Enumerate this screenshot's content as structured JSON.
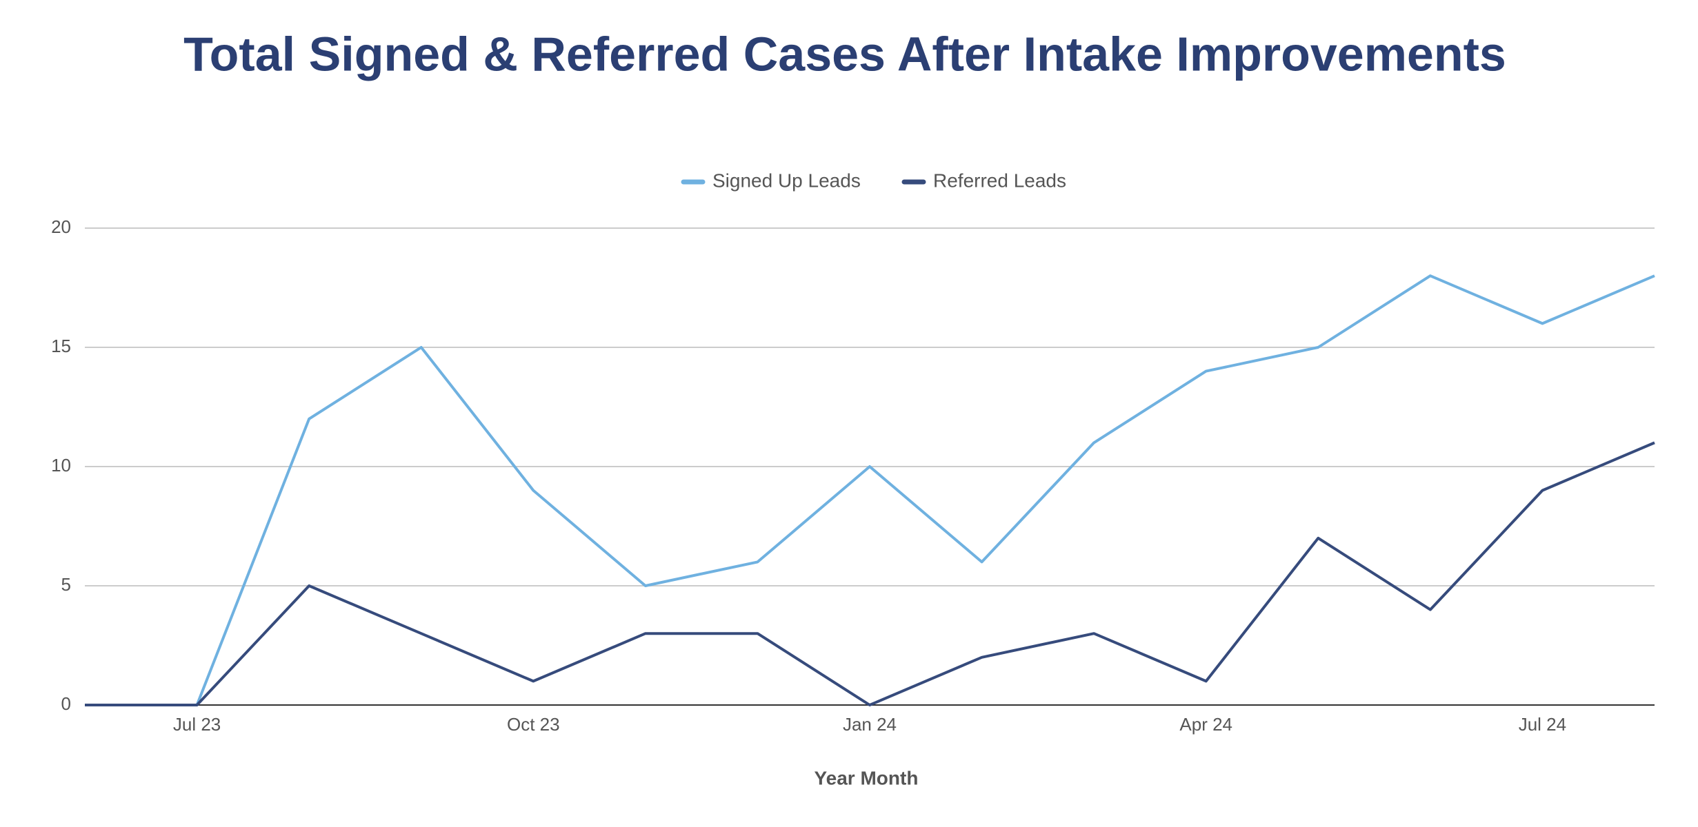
{
  "chart_data": {
    "type": "line",
    "title": "Total Signed & Referred Cases After Intake Improvements",
    "xlabel": "Year Month",
    "categories": [
      null,
      "Jul 23",
      null,
      null,
      "Oct 23",
      null,
      null,
      "Jan 24",
      null,
      null,
      "Apr 24",
      null,
      null,
      "Jul 24",
      null
    ],
    "series": [
      {
        "name": "Signed Up Leads",
        "color": "#6fb1e0",
        "values": [
          0,
          0,
          12,
          15,
          9,
          5,
          6,
          10,
          6,
          11,
          14,
          15,
          18,
          16,
          18
        ]
      },
      {
        "name": "Referred Leads",
        "color": "#364b7c",
        "values": [
          0,
          0,
          5,
          3,
          1,
          3,
          3,
          0,
          2,
          3,
          1,
          7,
          4,
          9,
          11
        ]
      }
    ],
    "ylim": [
      0,
      20
    ],
    "yticks": [
      0,
      5,
      10,
      15,
      20
    ],
    "grid": true,
    "legend": "top"
  }
}
